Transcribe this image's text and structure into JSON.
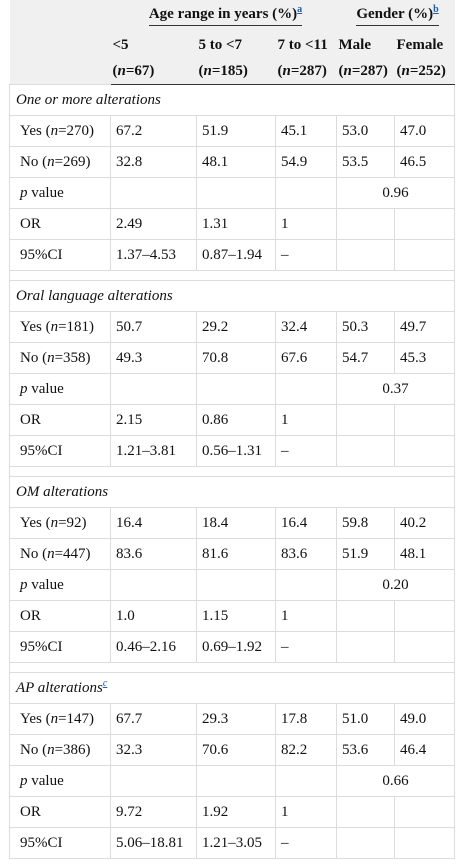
{
  "header": {
    "age_group": "Age range in years (%)",
    "age_group_note": "a",
    "gender_group": "Gender (%)",
    "gender_group_note": "b",
    "cols": [
      {
        "label": "<5",
        "n_prefix": "(",
        "n_var": "n",
        "n_value": "=67)"
      },
      {
        "label": "5 to <7",
        "n_prefix": "(",
        "n_var": "n",
        "n_value": "=185)"
      },
      {
        "label": "7 to <11",
        "n_prefix": "(",
        "n_var": "n",
        "n_value": "=287)"
      },
      {
        "label": "Male",
        "n_prefix": "(",
        "n_var": "n",
        "n_value": "=287)"
      },
      {
        "label": "Female",
        "n_prefix": "(",
        "n_var": "n",
        "n_value": "=252)"
      }
    ]
  },
  "sections": [
    {
      "title": "One or more alterations",
      "note": "",
      "yes": {
        "pre": "Yes (",
        "var": "n",
        "post": "=270)",
        "vals": [
          "67.2",
          "51.9",
          "45.1",
          "53.0",
          "47.0"
        ]
      },
      "no": {
        "pre": "No (",
        "var": "n",
        "post": "=269)",
        "vals": [
          "32.8",
          "48.1",
          "54.9",
          "53.5",
          "46.5"
        ]
      },
      "p": {
        "label_var": "p",
        "label_rest": " value",
        "value": "0.96"
      },
      "or": {
        "label": "OR",
        "vals": [
          "2.49",
          "1.31",
          "1"
        ]
      },
      "ci": {
        "label": "95%CI",
        "vals": [
          "1.37–4.53",
          "0.87–1.94",
          "–"
        ]
      }
    },
    {
      "title": "Oral language alterations",
      "note": "",
      "yes": {
        "pre": "Yes (",
        "var": "n",
        "post": "=181)",
        "vals": [
          "50.7",
          "29.2",
          "32.4",
          "50.3",
          "49.7"
        ]
      },
      "no": {
        "pre": "No (",
        "var": "n",
        "post": "=358)",
        "vals": [
          "49.3",
          "70.8",
          "67.6",
          "54.7",
          "45.3"
        ]
      },
      "p": {
        "label_var": "p",
        "label_rest": " value",
        "value": "0.37"
      },
      "or": {
        "label": "OR",
        "vals": [
          "2.15",
          "0.86",
          "1"
        ]
      },
      "ci": {
        "label": "95%CI",
        "vals": [
          "1.21–3.81",
          "0.56–1.31",
          "–"
        ]
      }
    },
    {
      "title": "OM alterations",
      "note": "",
      "yes": {
        "pre": "Yes (",
        "var": "n",
        "post": "=92)",
        "vals": [
          "16.4",
          "18.4",
          "16.4",
          "59.8",
          "40.2"
        ]
      },
      "no": {
        "pre": "No (",
        "var": "n",
        "post": "=447)",
        "vals": [
          "83.6",
          "81.6",
          "83.6",
          "51.9",
          "48.1"
        ]
      },
      "p": {
        "label_var": "p",
        "label_rest": " value",
        "value": "0.20"
      },
      "or": {
        "label": "OR",
        "vals": [
          "1.0",
          "1.15",
          "1"
        ]
      },
      "ci": {
        "label": "95%CI",
        "vals": [
          "0.46–2.16",
          "0.69–1.92",
          "–"
        ]
      }
    },
    {
      "title": "AP alterations",
      "note": "c",
      "yes": {
        "pre": "Yes (",
        "var": "n",
        "post": "=147)",
        "vals": [
          "67.7",
          "29.3",
          "17.8",
          "51.0",
          "49.0"
        ]
      },
      "no": {
        "pre": "No (",
        "var": "n",
        "post": "=386)",
        "vals": [
          "32.3",
          "70.6",
          "82.2",
          "53.6",
          "46.4"
        ]
      },
      "p": {
        "label_var": "p",
        "label_rest": " value",
        "value": "0.66"
      },
      "or": {
        "label": "OR",
        "vals": [
          "9.72",
          "1.92",
          "1"
        ]
      },
      "ci": {
        "label": "95%CI",
        "vals": [
          "5.06–18.81",
          "1.21–3.05",
          "–"
        ]
      }
    }
  ]
}
